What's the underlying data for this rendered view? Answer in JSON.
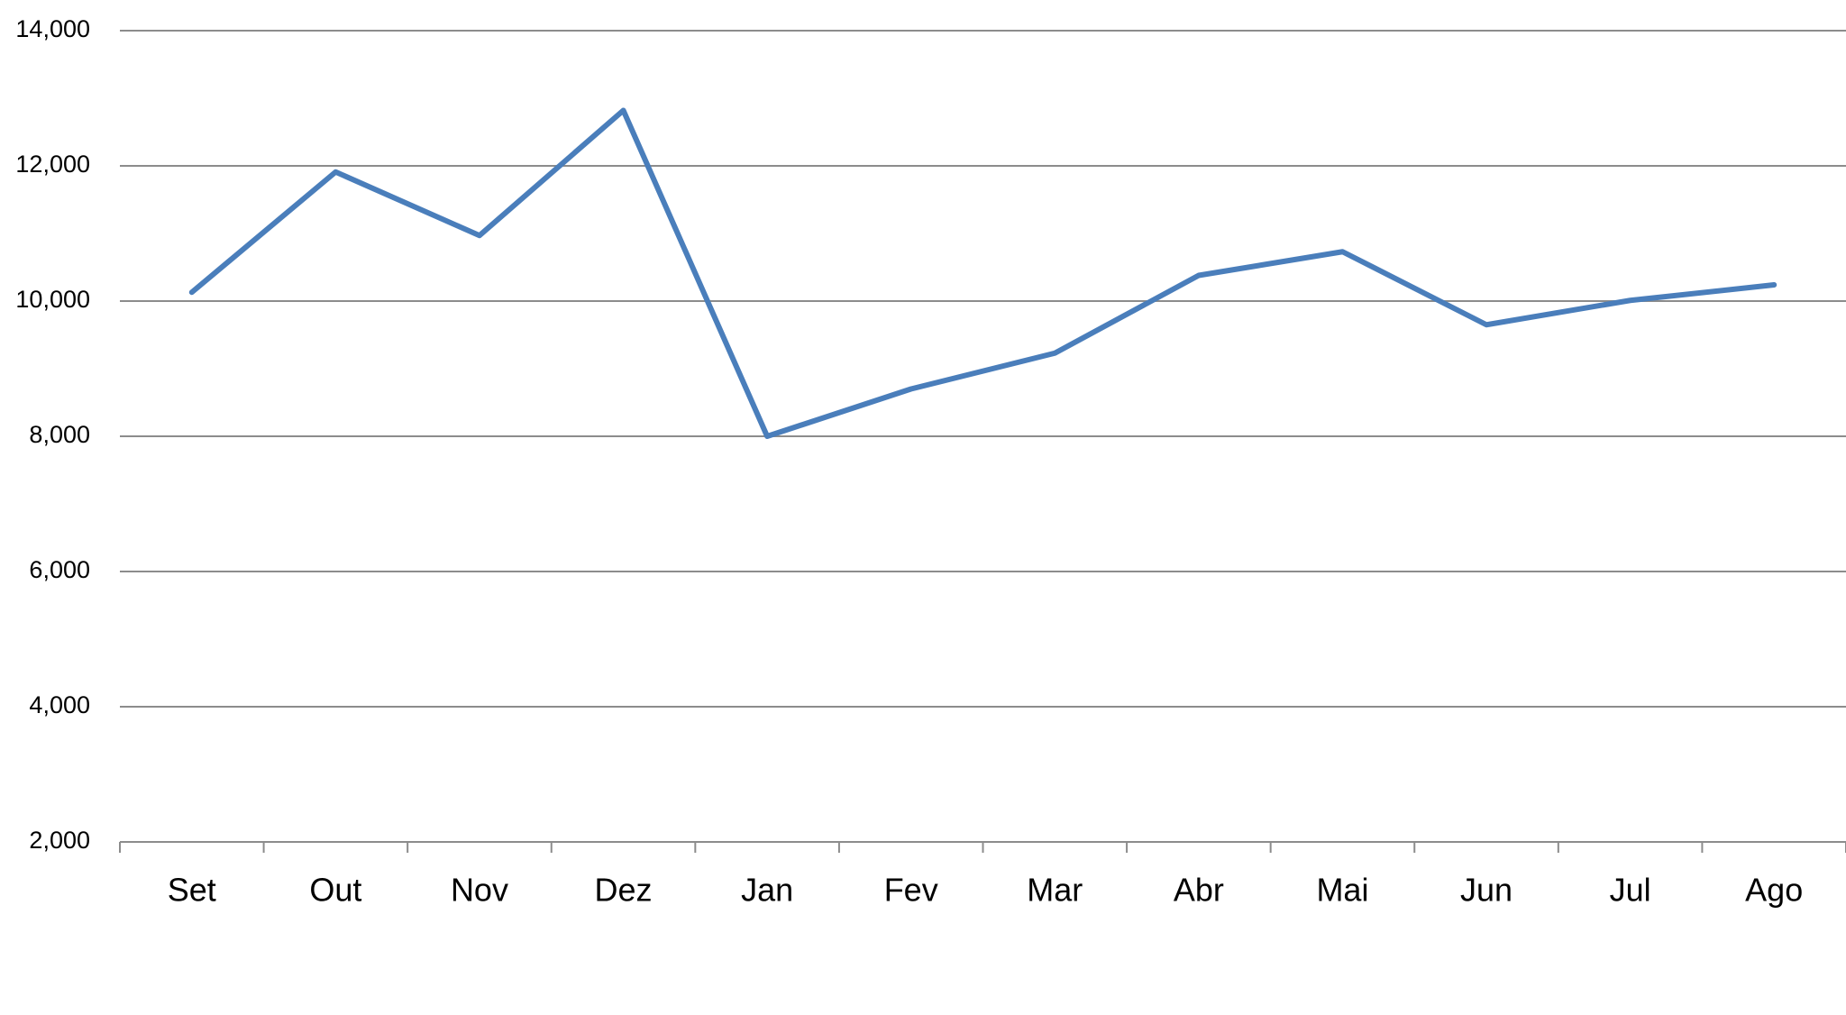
{
  "chart_data": {
    "type": "line",
    "categories": [
      "Set",
      "Out",
      "Nov",
      "Dez",
      "Jan",
      "Fev",
      "Mar",
      "Abr",
      "Mai",
      "Jun",
      "Jul",
      "Ago"
    ],
    "series": [
      {
        "color": "#4a7ebb",
        "values": [
          10130,
          11910,
          10970,
          12820,
          8000,
          8700,
          9230,
          10380,
          10730,
          9650,
          10010,
          10240
        ]
      }
    ],
    "ylim": [
      2000,
      14000
    ],
    "yticks": [
      {
        "value": 2000,
        "label": "2,000"
      },
      {
        "value": 4000,
        "label": "4,000"
      },
      {
        "value": 6000,
        "label": "6,000"
      },
      {
        "value": 8000,
        "label": "8,000"
      },
      {
        "value": 10000,
        "label": "10,000"
      },
      {
        "value": 12000,
        "label": "12,000"
      },
      {
        "value": 14000,
        "label": "14,000"
      }
    ],
    "grid": true
  }
}
